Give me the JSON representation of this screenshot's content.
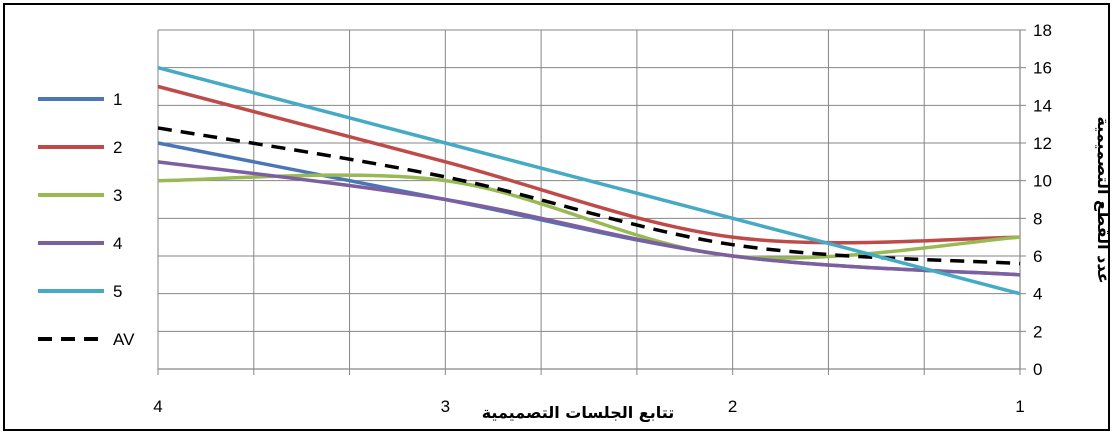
{
  "chart_data": {
    "type": "line",
    "xlabel": "تتابع الجلسات التصميمية",
    "ylabel": "عدد القطع التصميمية",
    "x": [
      4,
      3,
      2,
      1
    ],
    "xlim": [
      4,
      1
    ],
    "x_ticks": [
      "4",
      "3",
      "2",
      "1"
    ],
    "ylim": [
      0,
      18
    ],
    "y_ticks": [
      "0",
      "2",
      "4",
      "6",
      "8",
      "10",
      "12",
      "14",
      "16",
      "18"
    ],
    "grid": "on",
    "legend_position": "left",
    "y_axis_side": "right",
    "series": [
      {
        "name": "1",
        "color": "#4a76b8",
        "dash": "solid",
        "values": [
          12,
          9,
          6,
          5
        ]
      },
      {
        "name": "2",
        "color": "#be4b48",
        "dash": "solid",
        "values": [
          15,
          11,
          7,
          7
        ]
      },
      {
        "name": "3",
        "color": "#98b954",
        "dash": "solid",
        "values": [
          10,
          10,
          6,
          7
        ]
      },
      {
        "name": "4",
        "color": "#7d5fa0",
        "dash": "solid",
        "values": [
          11,
          9,
          6,
          5
        ]
      },
      {
        "name": "5",
        "color": "#46aac5",
        "dash": "solid",
        "values": [
          16,
          12,
          8,
          4
        ]
      },
      {
        "name": "AV",
        "color": "#000000",
        "dash": "dashed",
        "values": [
          12.8,
          10.2,
          6.6,
          5.6
        ]
      }
    ]
  }
}
